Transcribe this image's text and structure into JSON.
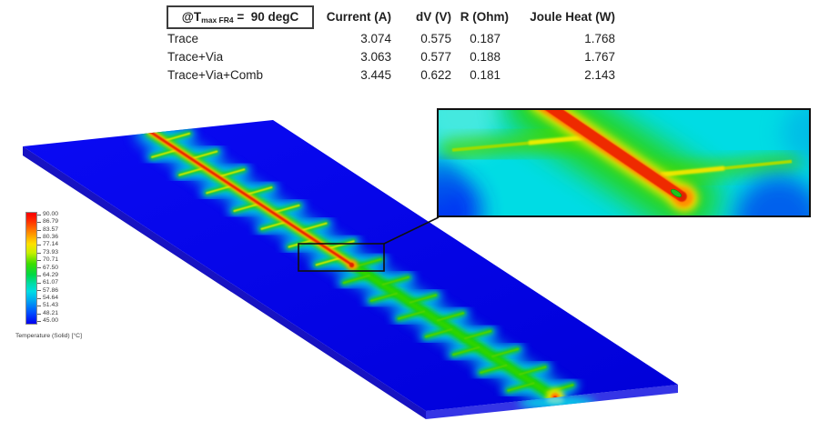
{
  "table": {
    "condition": {
      "prefix": "@T",
      "subscript": "max FR4",
      "suffix": " =  90 degC"
    },
    "columns": [
      "Current (A)",
      "dV (V)",
      "R (Ohm)",
      "Joule Heat (W)"
    ],
    "rows": [
      {
        "label": "Trace",
        "current": "3.074",
        "dv": "0.575",
        "r": "0.187",
        "joule": "1.768"
      },
      {
        "label": "Trace+Via",
        "current": "3.063",
        "dv": "0.577",
        "r": "0.188",
        "joule": "1.767"
      },
      {
        "label": "Trace+Via+Comb",
        "current": "3.445",
        "dv": "0.622",
        "r": "0.181",
        "joule": "2.143"
      }
    ]
  },
  "legend": {
    "title": "Temperature (Solid) [°C]",
    "ticks": [
      "90.00",
      "86.79",
      "83.57",
      "80.36",
      "77.14",
      "73.93",
      "70.71",
      "67.50",
      "64.29",
      "61.07",
      "57.86",
      "54.64",
      "51.43",
      "48.21",
      "45.00"
    ],
    "max_color": "#ff0000",
    "min_color": "#0000ff"
  },
  "chart_data": [
    {
      "type": "table",
      "title": "@T_max_FR4 = 90 degC",
      "columns": [
        "",
        "Current (A)",
        "dV (V)",
        "R (Ohm)",
        "Joule Heat (W)"
      ],
      "rows": [
        [
          "Trace",
          3.074,
          0.575,
          0.187,
          1.768
        ],
        [
          "Trace+Via",
          3.063,
          0.577,
          0.188,
          1.767
        ],
        [
          "Trace+Via+Comb",
          3.445,
          0.622,
          0.181,
          2.143
        ]
      ]
    },
    {
      "type": "heatmap",
      "title": "PCB trace Joule-heating thermal contour (3D solid view with zoom inset)",
      "colorbar_label": "Temperature (Solid) [°C]",
      "colorbar_min": 45.0,
      "colorbar_max": 90.0,
      "colorbar_ticks": [
        90.0,
        86.79,
        83.57,
        80.36,
        77.14,
        73.93,
        70.71,
        67.5,
        64.29,
        61.07,
        57.86,
        54.64,
        51.43,
        48.21,
        45.0
      ],
      "features": [
        "red hot trace with comb branches on blue board",
        "trace end via highlighted by callout rectangle",
        "zoom inset of trace tip with green via pad",
        "hot spot at board bottom edge"
      ]
    }
  ]
}
